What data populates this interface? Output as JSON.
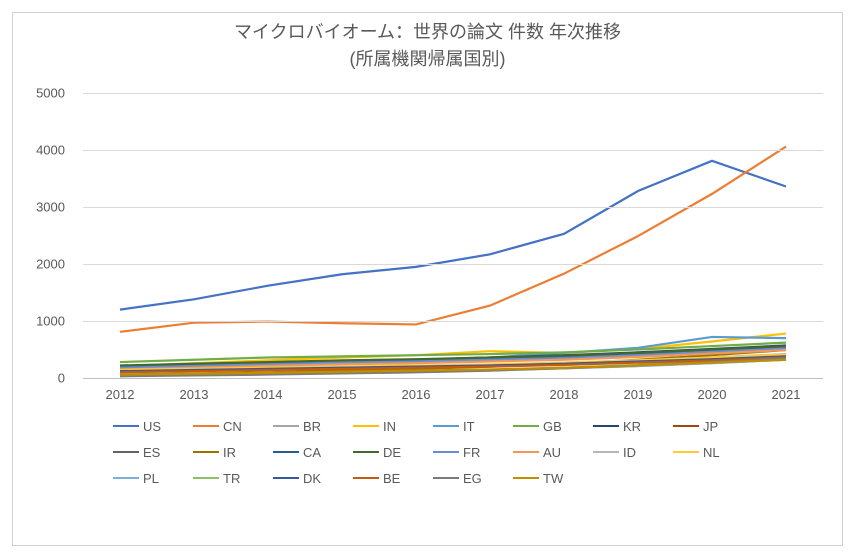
{
  "chart": {
    "type": "line",
    "title": "マイクロバイオーム：世界の論文 件数 年次推移",
    "subtitle": "(所属機関帰属国別)",
    "title_fontsize": 18,
    "title_color": "#595959",
    "background_color": "#ffffff",
    "border_color": "#d0d0d0",
    "grid_color": "#d9d9d9",
    "axis_label_color": "#595959",
    "axis_label_fontsize": 13,
    "line_width": 2.2,
    "ylim": [
      0,
      5000
    ],
    "ytick_step": 1000,
    "yticks": [
      0,
      1000,
      2000,
      3000,
      4000,
      5000
    ],
    "x_categories": [
      "2012",
      "2013",
      "2014",
      "2015",
      "2016",
      "2017",
      "2018",
      "2019",
      "2020",
      "2021"
    ],
    "series": [
      {
        "label": "US",
        "color": "#4472c4",
        "values": [
          1200,
          1380,
          1620,
          1820,
          1950,
          2170,
          2530,
          3280,
          3810,
          3360
        ]
      },
      {
        "label": "CN",
        "color": "#ed7d31",
        "values": [
          810,
          970,
          990,
          960,
          940,
          1270,
          1830,
          2490,
          3230,
          4060
        ]
      },
      {
        "label": "BR",
        "color": "#a5a5a5",
        "values": [
          100,
          130,
          160,
          180,
          200,
          230,
          270,
          310,
          360,
          420
        ]
      },
      {
        "label": "IN",
        "color": "#ffc000",
        "values": [
          200,
          260,
          310,
          360,
          400,
          470,
          440,
          510,
          640,
          780
        ]
      },
      {
        "label": "IT",
        "color": "#5b9bd5",
        "values": [
          150,
          190,
          230,
          270,
          310,
          360,
          440,
          530,
          720,
          700
        ]
      },
      {
        "label": "GB",
        "color": "#70ad47",
        "values": [
          280,
          320,
          360,
          380,
          400,
          420,
          450,
          500,
          560,
          620
        ]
      },
      {
        "label": "KR",
        "color": "#264478",
        "values": [
          170,
          210,
          250,
          290,
          320,
          360,
          400,
          450,
          510,
          570
        ]
      },
      {
        "label": "JP",
        "color": "#9e480e",
        "values": [
          190,
          220,
          250,
          280,
          300,
          330,
          370,
          420,
          480,
          540
        ]
      },
      {
        "label": "ES",
        "color": "#636363",
        "values": [
          160,
          190,
          220,
          250,
          270,
          300,
          330,
          380,
          440,
          500
        ]
      },
      {
        "label": "IR",
        "color": "#997300",
        "values": [
          60,
          80,
          100,
          130,
          160,
          200,
          250,
          320,
          400,
          490
        ]
      },
      {
        "label": "CA",
        "color": "#255e91",
        "values": [
          200,
          230,
          260,
          290,
          310,
          340,
          370,
          420,
          480,
          540
        ]
      },
      {
        "label": "DE",
        "color": "#43682b",
        "values": [
          220,
          250,
          280,
          310,
          330,
          360,
          390,
          440,
          500,
          560
        ]
      },
      {
        "label": "FR",
        "color": "#698ed0",
        "values": [
          180,
          210,
          240,
          270,
          290,
          320,
          350,
          400,
          460,
          520
        ]
      },
      {
        "label": "AU",
        "color": "#f1975a",
        "values": [
          150,
          180,
          210,
          240,
          260,
          290,
          320,
          370,
          430,
          490
        ]
      },
      {
        "label": "ID",
        "color": "#b7b7b7",
        "values": [
          40,
          55,
          70,
          90,
          110,
          140,
          170,
          210,
          260,
          320
        ]
      },
      {
        "label": "NL",
        "color": "#ffcd33",
        "values": [
          140,
          160,
          180,
          200,
          220,
          240,
          270,
          310,
          360,
          410
        ]
      },
      {
        "label": "PL",
        "color": "#7cafdd",
        "values": [
          50,
          65,
          80,
          100,
          120,
          140,
          170,
          210,
          260,
          320
        ]
      },
      {
        "label": "TR",
        "color": "#8cc168",
        "values": [
          40,
          55,
          70,
          90,
          110,
          140,
          180,
          230,
          290,
          360
        ]
      },
      {
        "label": "DK",
        "color": "#335aa1",
        "values": [
          120,
          140,
          160,
          180,
          200,
          220,
          250,
          290,
          330,
          380
        ]
      },
      {
        "label": "BE",
        "color": "#c55a11",
        "values": [
          100,
          120,
          140,
          160,
          180,
          200,
          230,
          270,
          310,
          360
        ]
      },
      {
        "label": "EG",
        "color": "#7b7b7b",
        "values": [
          30,
          45,
          60,
          80,
          100,
          130,
          170,
          220,
          280,
          350
        ]
      },
      {
        "label": "TW",
        "color": "#bf8f00",
        "values": [
          60,
          75,
          90,
          110,
          130,
          150,
          180,
          220,
          270,
          320
        ]
      }
    ]
  }
}
